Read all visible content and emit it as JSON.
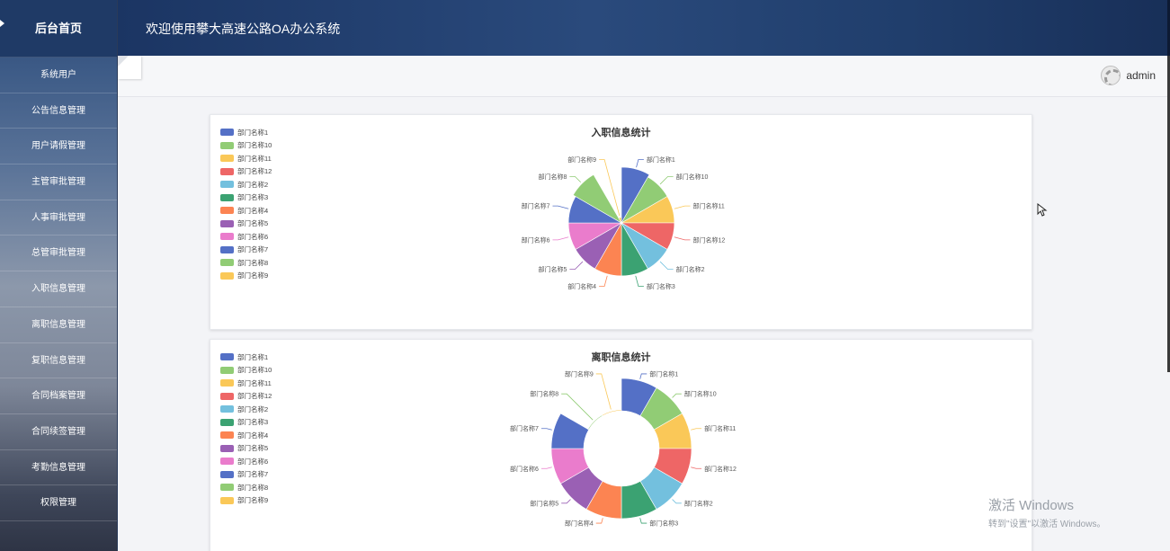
{
  "sidebar": {
    "brand": "后台首页",
    "items": [
      "系统用户",
      "公告信息管理",
      "用户请假管理",
      "主管审批管理",
      "人事审批管理",
      "总管审批管理",
      "入职信息管理",
      "离职信息管理",
      "复职信息管理",
      "合同档案管理",
      "合同续签管理",
      "考勤信息管理",
      "权限管理"
    ]
  },
  "header": {
    "title": "欢迎使用攀大高速公路OA办公系统"
  },
  "topbar": {
    "username": "admin"
  },
  "palette": [
    "#5470c6",
    "#91cc75",
    "#fac858",
    "#ee6666",
    "#73c0de",
    "#3ba272",
    "#fc8452",
    "#9a60b4",
    "#ea7ccc",
    "#5470c6",
    "#91cc75",
    "#fac858"
  ],
  "legend": [
    "部门名称1",
    "部门名称10",
    "部门名称11",
    "部门名称12",
    "部门名称2",
    "部门名称3",
    "部门名称4",
    "部门名称5",
    "部门名称6",
    "部门名称7",
    "部门名称8",
    "部门名称9"
  ],
  "chart_data": [
    {
      "type": "pie",
      "title": "入职信息统计",
      "rose": true,
      "categories": [
        "部门名称1",
        "部门名称10",
        "部门名称11",
        "部门名称12",
        "部门名称2",
        "部门名称3",
        "部门名称4",
        "部门名称5",
        "部门名称6",
        "部门名称7",
        "部门名称8",
        "部门名称9"
      ],
      "values": [
        1,
        1,
        1,
        1,
        1,
        1,
        1,
        1,
        1,
        1,
        1,
        1
      ],
      "radius_scale": [
        1.0,
        0.95,
        0.95,
        0.95,
        0.95,
        0.95,
        0.95,
        0.95,
        0.95,
        0.95,
        1.0,
        0.1
      ]
    },
    {
      "type": "pie",
      "title": "离职信息统计",
      "rose": true,
      "donut": true,
      "categories": [
        "部门名称1",
        "部门名称10",
        "部门名称11",
        "部门名称12",
        "部门名称2",
        "部门名称3",
        "部门名称4",
        "部门名称5",
        "部门名称6",
        "部门名称7",
        "部门名称8",
        "部门名称9"
      ],
      "values": [
        1,
        1,
        1,
        1,
        1,
        1,
        1,
        1,
        1,
        1,
        1,
        1
      ],
      "radius_scale": [
        1.0,
        1.0,
        1.0,
        1.0,
        1.0,
        1.0,
        1.0,
        1.0,
        1.0,
        1.0,
        0.0,
        0.0
      ]
    }
  ],
  "watermark": {
    "line1": "激活 Windows",
    "line2": "转到\"设置\"以激活 Windows。"
  }
}
